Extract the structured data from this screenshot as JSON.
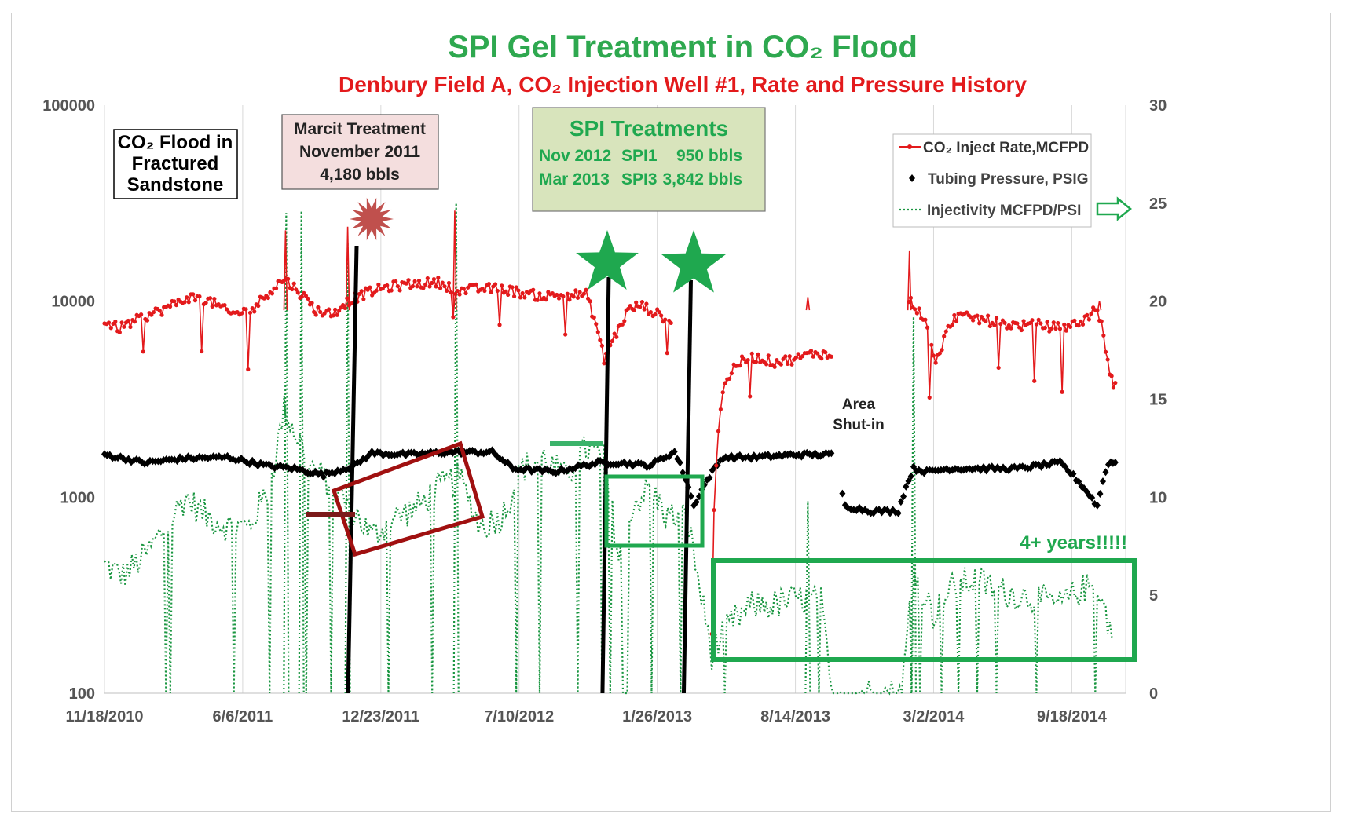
{
  "chart_data": {
    "type": "line",
    "title": "SPI Gel Treatment in CO₂ Flood",
    "subtitle": "Denbury Field A, CO₂ Injection Well #1, Rate and Pressure History",
    "x_tick_labels": [
      "11/18/2010",
      "6/6/2011",
      "12/23/2011",
      "7/10/2012",
      "1/26/2013",
      "8/14/2013",
      "3/2/2014",
      "9/18/2014"
    ],
    "y_left": {
      "scale": "log",
      "ylim": [
        100,
        100000
      ],
      "tick_labels": [
        "100",
        "1000",
        "10000",
        "100000"
      ]
    },
    "y_right": {
      "scale": "linear",
      "ylim": [
        0,
        30
      ],
      "tick_labels": [
        "0",
        "5",
        "10",
        "15",
        "20",
        "25",
        "30"
      ]
    },
    "grid": "vertical",
    "legend_placement": "top-right",
    "legend": [
      {
        "label": "CO₂ Inject Rate,MCFPD",
        "color": "#e31a1c",
        "axis": "left"
      },
      {
        "label": "Tubing Pressure, PSIG",
        "color": "#000000",
        "axis": "left"
      },
      {
        "label": "Injectivity MCFPD/PSI",
        "color": "#1a9641",
        "axis": "right"
      }
    ],
    "series": [
      {
        "name": "CO₂ Inject Rate,MCFPD",
        "axis": "left",
        "x": [
          "2010-11-18",
          "2010-12-10",
          "2011-01-10",
          "2011-02-15",
          "2011-03-20",
          "2011-04-20",
          "2011-05-20",
          "2011-06-20",
          "2011-07-10",
          "2011-08-05",
          "2011-08-25",
          "2011-09-20",
          "2011-10-15",
          "2011-11-01",
          "2011-12-01",
          "2012-01-01",
          "2012-02-01",
          "2012-03-15",
          "2012-04-15",
          "2012-05-15",
          "2012-06-15",
          "2012-07-15",
          "2012-08-15",
          "2012-09-15",
          "2012-10-15",
          "2012-11-10",
          "2012-12-01",
          "2012-12-15",
          "2013-01-01",
          "2013-01-26",
          "2013-02-15",
          "2013-04-15",
          "2013-05-01",
          "2013-05-20",
          "2013-06-15",
          "2013-07-15",
          "2013-08-15",
          "2013-09-15",
          "2013-10-05",
          "2014-01-25",
          "2014-02-15",
          "2014-03-05",
          "2014-04-01",
          "2014-05-01",
          "2014-06-01",
          "2014-07-01",
          "2014-08-01",
          "2014-09-01",
          "2014-10-01",
          "2014-10-25",
          "2014-11-12",
          "2014-11-20"
        ],
        "y": [
          7800,
          7300,
          8200,
          9200,
          10500,
          10000,
          8600,
          9000,
          10800,
          13000,
          11300,
          9000,
          8600,
          9800,
          11000,
          11800,
          12200,
          12500,
          11300,
          11600,
          11600,
          11000,
          10600,
          10800,
          10800,
          5000,
          7200,
          9000,
          9600,
          8600,
          8000,
          200,
          3500,
          4800,
          5200,
          4900,
          5100,
          5500,
          5200,
          10200,
          8300,
          4700,
          8400,
          8200,
          7800,
          7500,
          7600,
          7300,
          7800,
          9200,
          4100,
          3700
        ]
      },
      {
        "name": "Tubing Pressure, PSIG",
        "axis": "left",
        "x": [
          "2010-11-18",
          "2011-01-15",
          "2011-03-15",
          "2011-05-15",
          "2011-07-10",
          "2011-08-20",
          "2011-10-01",
          "2011-11-15",
          "2011-12-10",
          "2012-02-01",
          "2012-04-01",
          "2012-06-01",
          "2012-07-01",
          "2012-09-01",
          "2012-11-01",
          "2012-12-01",
          "2013-01-15",
          "2013-02-20",
          "2013-03-20",
          "2013-05-01",
          "2013-06-15",
          "2013-08-15",
          "2013-10-05",
          "2013-10-25",
          "2013-12-01",
          "2014-01-10",
          "2014-02-01",
          "2014-02-20",
          "2014-03-25",
          "2014-05-01",
          "2014-07-01",
          "2014-09-01",
          "2014-10-25",
          "2014-11-10",
          "2014-11-20"
        ],
        "y": [
          1650,
          1500,
          1580,
          1600,
          1450,
          1400,
          1300,
          1450,
          1680,
          1650,
          1700,
          1700,
          1400,
          1350,
          1500,
          1500,
          1450,
          1700,
          900,
          1600,
          1600,
          1650,
          1650,
          900,
          850,
          850,
          1400,
          1350,
          1400,
          1400,
          1400,
          1500,
          900,
          1500,
          1500
        ]
      },
      {
        "name": "Injectivity MCFPD/PSI",
        "axis": "right",
        "x": [
          "2010-11-18",
          "2010-12-15",
          "2011-01-15",
          "2011-02-15",
          "2011-03-15",
          "2011-04-15",
          "2011-05-15",
          "2011-06-15",
          "2011-07-15",
          "2011-08-05",
          "2011-08-25",
          "2011-09-15",
          "2011-10-15",
          "2011-11-10",
          "2011-12-10",
          "2012-01-15",
          "2012-02-15",
          "2012-03-15",
          "2012-04-15",
          "2012-05-15",
          "2012-06-15",
          "2012-07-15",
          "2012-08-15",
          "2012-09-15",
          "2012-10-15",
          "2012-11-10",
          "2012-12-01",
          "2012-12-20",
          "2013-01-15",
          "2013-02-10",
          "2013-03-10",
          "2013-04-15",
          "2013-05-10",
          "2013-06-15",
          "2013-07-15",
          "2013-08-15",
          "2013-09-20",
          "2013-10-05",
          "2013-12-01",
          "2014-01-15",
          "2014-02-01",
          "2014-03-01",
          "2014-04-01",
          "2014-05-01",
          "2014-06-01",
          "2014-07-01",
          "2014-08-01",
          "2014-09-01",
          "2014-10-01",
          "2014-10-25",
          "2014-11-15"
        ],
        "y": [
          6.5,
          6.0,
          7.0,
          8.5,
          10.0,
          9.0,
          8.5,
          8.5,
          10.5,
          14.5,
          13.0,
          11.5,
          10.5,
          9.5,
          8.0,
          9.0,
          9.5,
          10.5,
          11.0,
          8.5,
          9.0,
          11.5,
          12.0,
          11.0,
          12.5,
          12.0,
          7.0,
          9.5,
          10.5,
          9.0,
          9.0,
          2.0,
          3.5,
          4.5,
          4.5,
          4.8,
          4.7,
          0,
          0,
          0,
          6.5,
          4.0,
          5.5,
          5.8,
          5.3,
          5.0,
          4.8,
          4.5,
          5.3,
          5.5,
          3.0
        ]
      }
    ],
    "annotations": {
      "flood_box": [
        "CO₂ Flood in",
        "Fractured",
        "Sandstone"
      ],
      "marcit_box": [
        "Marcit Treatment",
        "November 2011",
        "4,180 bbls"
      ],
      "spi_box": {
        "title": "SPI Treatments",
        "rows": [
          [
            "Nov 2012",
            "SPI1",
            "950 bbls"
          ],
          [
            "Mar 2013",
            "SPI3",
            "3,842 bbls"
          ]
        ]
      },
      "shut_in": [
        "Area",
        "Shut-in"
      ],
      "years_label": "4+ years!!!!!",
      "treatment_dates": [
        "2011-11-10",
        "2012-11-10",
        "2013-03-10"
      ]
    },
    "colors": {
      "title": "#2ea84f",
      "subtitle": "#e31a1c",
      "rate": "#e31a1c",
      "pressure": "#000000",
      "injectivity": "#1a9641",
      "marcit_fill": "#f4dede",
      "spi_fill": "#d8e4bc",
      "dark_red_box": "#a01010",
      "green_box": "#1fa84f",
      "burst": "#c0504d"
    }
  }
}
